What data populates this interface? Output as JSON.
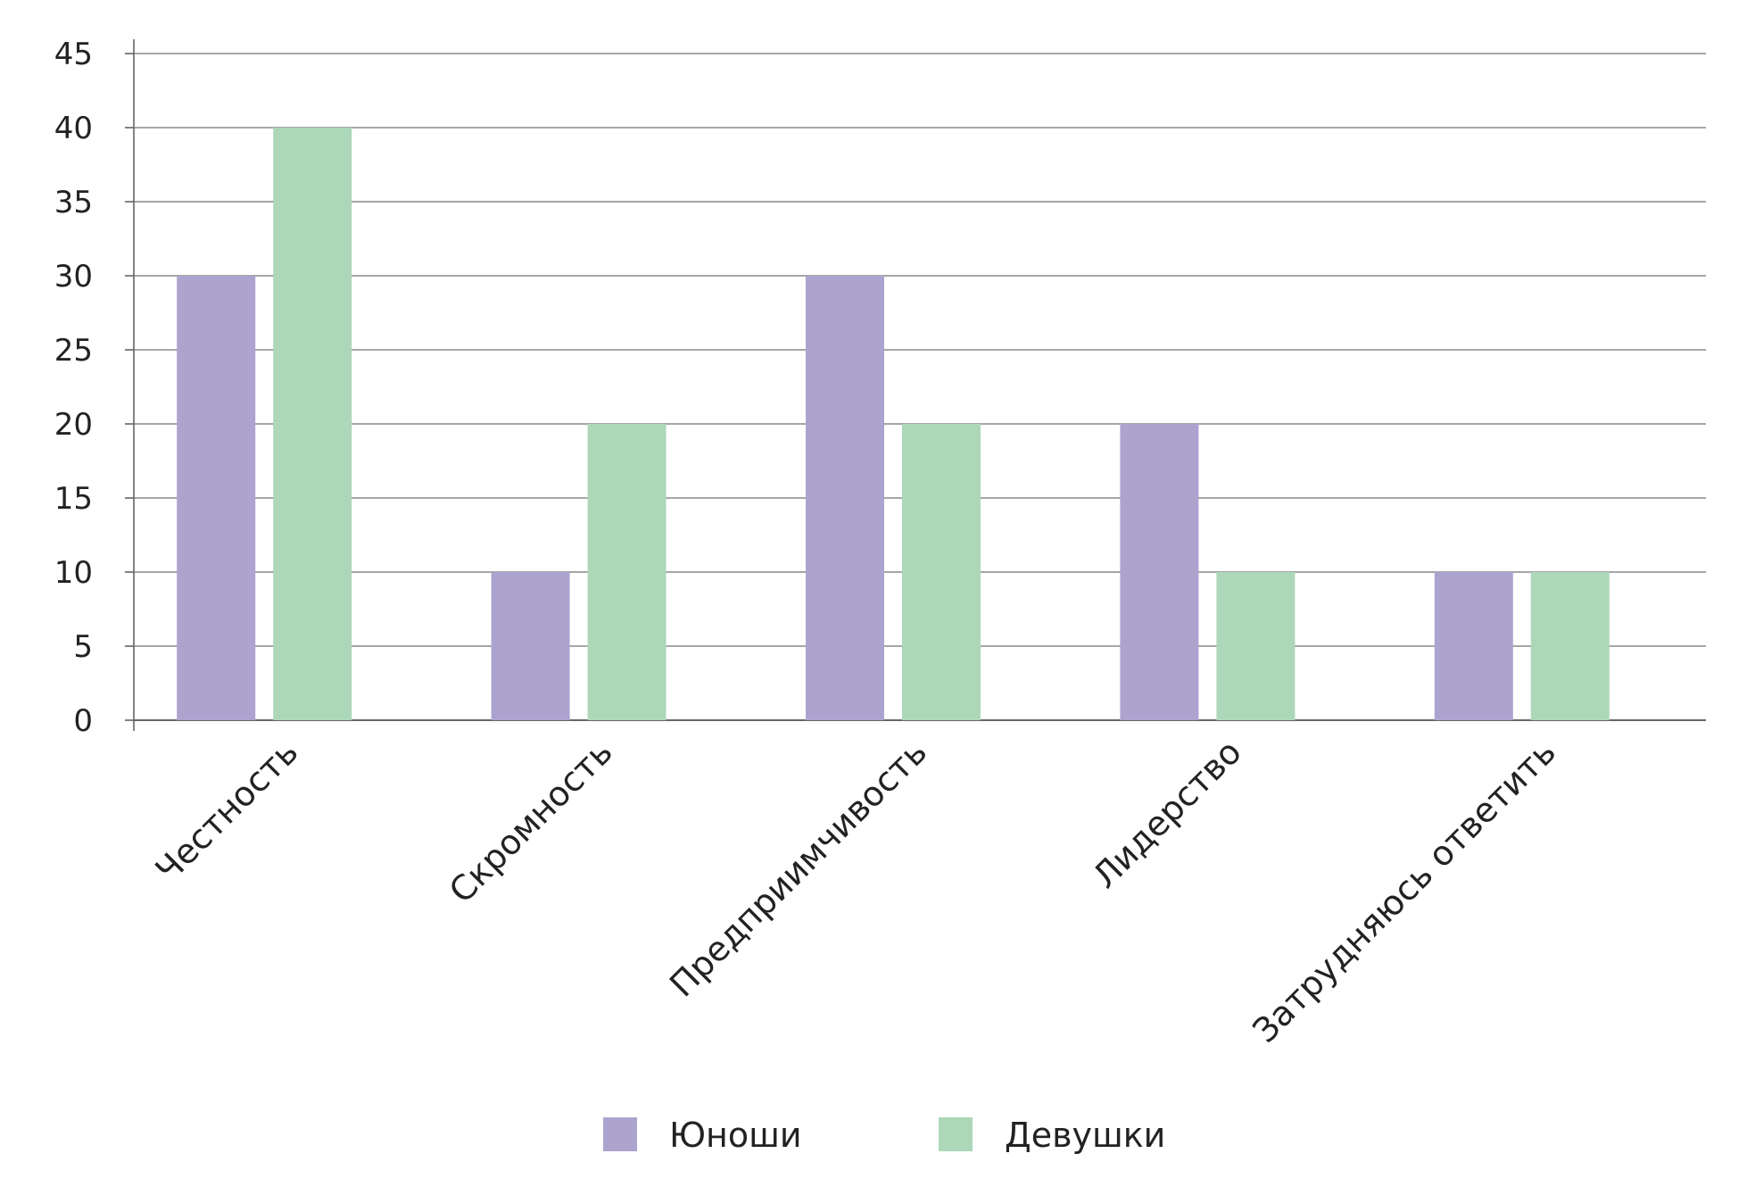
{
  "chart_data": {
    "type": "bar",
    "title": "",
    "xlabel": "",
    "ylabel": "",
    "categories": [
      "Честность",
      "Скромность",
      "Предприимчивость",
      "Лидерство",
      "Затрудняюсь ответить"
    ],
    "series": [
      {
        "name": "Юноши",
        "values": [
          30,
          10,
          30,
          20,
          10
        ],
        "color": "#ada3cf"
      },
      {
        "name": "Девушки",
        "values": [
          40,
          20,
          20,
          10,
          10
        ],
        "color": "#acd7b9"
      }
    ],
    "ylim": [
      0,
      45
    ],
    "yticks": [
      "0",
      "5",
      "10",
      "15",
      "20",
      "25",
      "30",
      "35",
      "40",
      "45"
    ],
    "grid": true,
    "legend_position": "bottom-center",
    "gridline_color": "#888888",
    "axis_color": "#666666"
  }
}
